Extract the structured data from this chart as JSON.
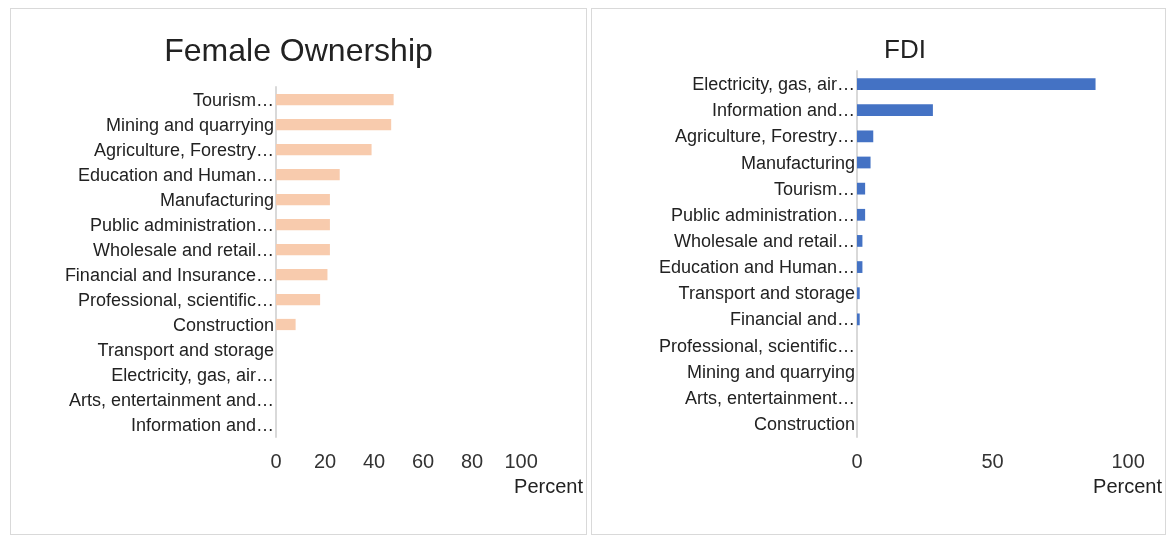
{
  "chart_data": [
    {
      "type": "bar",
      "orientation": "horizontal",
      "title": "Female Ownership",
      "xlabel": "Percent",
      "categories": [
        "Tourism…",
        "Mining and quarrying",
        "Agriculture, Forestry…",
        "Education and Human…",
        "Manufacturing",
        "Public administration…",
        "Wholesale and retail…",
        "Financial and Insurance…",
        "Professional, scientific…",
        "Construction",
        "Transport and storage",
        "Electricity, gas, air…",
        "Arts, entertainment and…",
        "Information and…"
      ],
      "values": [
        48,
        47,
        39,
        26,
        22,
        22,
        22,
        21,
        18,
        8,
        0,
        0,
        0,
        0
      ],
      "color": "#f8cbad",
      "xlim": [
        0,
        100
      ],
      "xticks": [
        0,
        20,
        40,
        60,
        80,
        100
      ],
      "grid": false
    },
    {
      "type": "bar",
      "orientation": "horizontal",
      "title": "FDI",
      "xlabel": "Percent",
      "categories": [
        "Electricity, gas, air…",
        "Information and…",
        "Agriculture, Forestry…",
        "Manufacturing",
        "Tourism…",
        "Public administration…",
        "Wholesale and retail…",
        "Education and Human…",
        "Transport and storage",
        "Financial and…",
        "Professional, scientific…",
        "Mining and quarrying",
        "Arts, entertainment…",
        "Construction"
      ],
      "values": [
        88,
        28,
        6,
        5,
        3,
        3,
        2,
        2,
        1,
        1,
        0,
        0,
        0,
        0
      ],
      "color": "#4472c4",
      "xlim": [
        0,
        100
      ],
      "xticks": [
        0,
        50,
        100
      ],
      "grid": false
    }
  ]
}
